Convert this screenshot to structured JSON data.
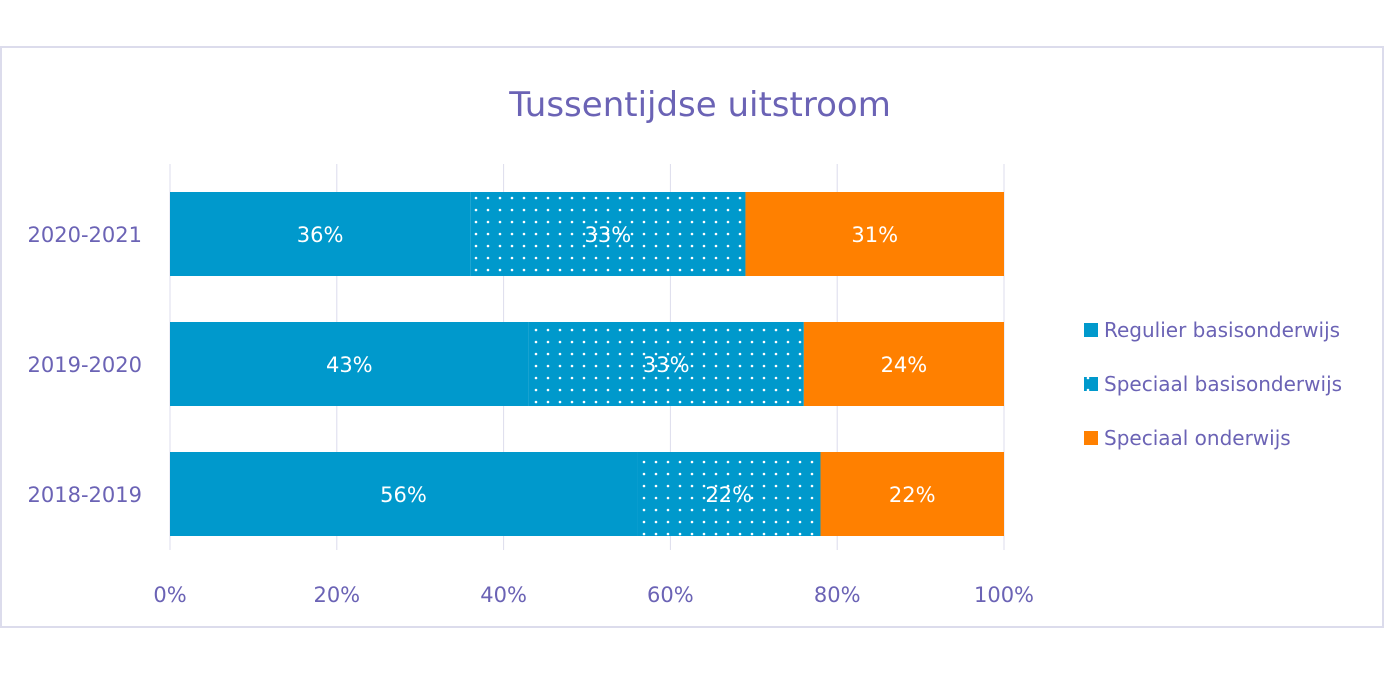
{
  "chart_data": {
    "type": "bar",
    "orientation": "horizontal",
    "stacked": "percent",
    "title": "Tussentijdse uitstroom",
    "categories": [
      "2020-2021",
      "2019-2020",
      "2018-2019"
    ],
    "series": [
      {
        "name": "Regulier basisonderwijs",
        "values": [
          36,
          43,
          56
        ],
        "labels": [
          "36%",
          "43%",
          "56%"
        ],
        "color": "#0099cc",
        "pattern": "solid"
      },
      {
        "name": "Speciaal basisonderwijs",
        "values": [
          33,
          33,
          22
        ],
        "labels": [
          "33%",
          "33%",
          "22%"
        ],
        "color": "#0099cc",
        "pattern": "dotted"
      },
      {
        "name": "Speciaal onderwijs",
        "values": [
          31,
          24,
          22
        ],
        "labels": [
          "31%",
          "24%",
          "22%"
        ],
        "color": "#ff8000",
        "pattern": "solid"
      }
    ],
    "xlim": [
      0,
      100
    ],
    "xticks": [
      "0%",
      "20%",
      "40%",
      "60%",
      "80%",
      "100%"
    ],
    "grid": true,
    "legend_position": "right"
  }
}
